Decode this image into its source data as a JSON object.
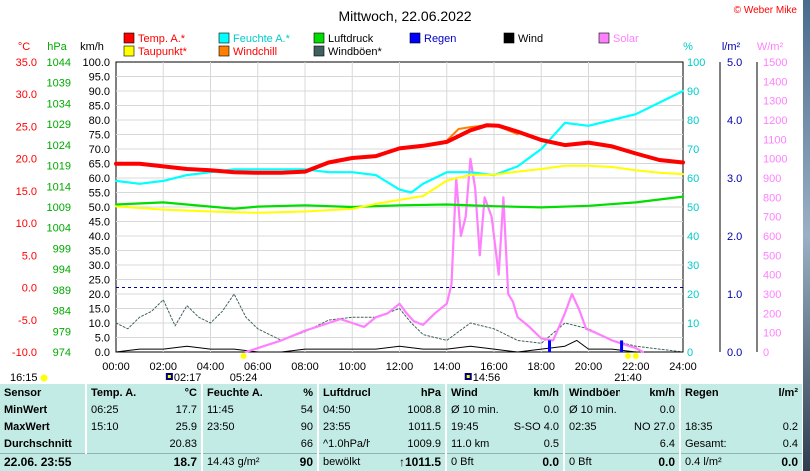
{
  "title": "Mittwoch, 22.06.2022",
  "copyright": "© Weber Mike",
  "legend": [
    {
      "label": "Temp. A.*",
      "color": "#ff0000"
    },
    {
      "label": "Feuchte A.*",
      "color": "#00ffff"
    },
    {
      "label": "Luftdruck",
      "color": "#00dd00"
    },
    {
      "label": "Regen",
      "color": "#0000ff"
    },
    {
      "label": "Wind",
      "color": "#000000"
    },
    {
      "label": "Solar",
      "color": "#ff80ff"
    },
    {
      "label": "Taupunkt*",
      "color": "#ffff00"
    },
    {
      "label": "Windchill",
      "color": "#ff8000"
    },
    {
      "label": "Windböen*",
      "color": "#406060"
    }
  ],
  "chart_data": {
    "type": "line",
    "x_unit": "hour",
    "xlim": [
      0,
      24
    ],
    "x_ticks": [
      "00:00",
      "02:00",
      "04:00",
      "06:00",
      "08:00",
      "10:00",
      "12:00",
      "14:00",
      "16:00",
      "18:00",
      "20:00",
      "22:00",
      "24:00"
    ],
    "axes": {
      "temp": {
        "unit": "°C",
        "ticks": [
          "35.0",
          "30.0",
          "25.0",
          "20.0",
          "15.0",
          "10.0",
          "5.0",
          "0.0",
          "-5.0",
          "-10.0"
        ],
        "color": "#ff0000"
      },
      "pressure": {
        "unit": "hPa",
        "ticks": [
          "1044",
          "1039",
          "1034",
          "1029",
          "1024",
          "1019",
          "1014",
          "1009",
          "1004",
          "999",
          "994",
          "989",
          "984",
          "979",
          "974"
        ],
        "color": "#00aa00"
      },
      "wind": {
        "unit": "km/h",
        "ticks": [
          "100.0",
          "95.0",
          "90.0",
          "85.0",
          "80.0",
          "75.0",
          "70.0",
          "65.0",
          "60.0",
          "55.0",
          "50.0",
          "45.0",
          "40.0",
          "35.0",
          "30.0",
          "25.0",
          "20.0",
          "15.0",
          "10.0",
          "5.0",
          "0.0"
        ],
        "color": "#000000"
      },
      "humidity": {
        "unit": "%",
        "ticks": [
          "100",
          "90",
          "80",
          "70",
          "60",
          "50",
          "40",
          "30",
          "20",
          "10",
          "0"
        ],
        "color": "#00cccc"
      },
      "rain": {
        "unit": "l/m²",
        "ticks": [
          "5.0",
          "4.0",
          "3.0",
          "2.0",
          "1.0",
          "0.0"
        ],
        "color": "#0000aa"
      },
      "solar": {
        "unit": "W/m²",
        "ticks": [
          "1500",
          "1400",
          "1300",
          "1200",
          "1100",
          "1000",
          "900",
          "800",
          "700",
          "600",
          "500",
          "400",
          "300",
          "200",
          "100",
          "0"
        ],
        "color": "#ff80ff"
      }
    },
    "series": [
      {
        "name": "Temp. A.*",
        "axis": "temp",
        "color": "#ff0000",
        "points": [
          [
            0,
            19.2
          ],
          [
            1,
            19.2
          ],
          [
            2,
            18.8
          ],
          [
            3,
            18.4
          ],
          [
            4,
            18.2
          ],
          [
            5,
            17.9
          ],
          [
            6,
            17.8
          ],
          [
            7,
            17.8
          ],
          [
            8,
            18.0
          ],
          [
            9,
            19.4
          ],
          [
            10,
            20.1
          ],
          [
            11,
            20.4
          ],
          [
            12,
            21.6
          ],
          [
            13,
            22.0
          ],
          [
            14,
            22.6
          ],
          [
            15,
            24.4
          ],
          [
            15.7,
            25.2
          ],
          [
            16.2,
            25.1
          ],
          [
            17,
            24.2
          ],
          [
            18,
            22.9
          ],
          [
            19,
            22.1
          ],
          [
            20,
            22.5
          ],
          [
            21,
            21.9
          ],
          [
            22,
            20.8
          ],
          [
            23,
            19.8
          ],
          [
            24,
            19.4
          ]
        ]
      },
      {
        "name": "Windchill",
        "axis": "temp",
        "color": "#ff8000",
        "points": [
          [
            14,
            22.8
          ],
          [
            14.5,
            24.6
          ],
          [
            15,
            24.9
          ],
          [
            15.5,
            25.1
          ],
          [
            16.2,
            25.0
          ],
          [
            17,
            23.8
          ]
        ]
      },
      {
        "name": "Taupunkt*",
        "axis": "temp",
        "color": "#ffff00",
        "points": [
          [
            0,
            12.6
          ],
          [
            2,
            12.1
          ],
          [
            4,
            11.8
          ],
          [
            6,
            11.6
          ],
          [
            8,
            11.8
          ],
          [
            10,
            12.2
          ],
          [
            11,
            13.0
          ],
          [
            12,
            13.6
          ],
          [
            13,
            14.2
          ],
          [
            14,
            16.6
          ],
          [
            15,
            17.5
          ],
          [
            16,
            17.5
          ],
          [
            17,
            18.0
          ],
          [
            18,
            18.4
          ],
          [
            19,
            18.9
          ],
          [
            20,
            18.9
          ],
          [
            21,
            18.7
          ],
          [
            22,
            18.2
          ],
          [
            23,
            17.8
          ],
          [
            24,
            17.6
          ]
        ]
      },
      {
        "name": "Feuchte A.*",
        "axis": "humidity",
        "color": "#00ffff",
        "points": [
          [
            0,
            59
          ],
          [
            1,
            58
          ],
          [
            2,
            59
          ],
          [
            3,
            61
          ],
          [
            4,
            62
          ],
          [
            5,
            63
          ],
          [
            6,
            63
          ],
          [
            7,
            63
          ],
          [
            8,
            63
          ],
          [
            9,
            62
          ],
          [
            10,
            62
          ],
          [
            11,
            61
          ],
          [
            12,
            56
          ],
          [
            12.5,
            55
          ],
          [
            13,
            58
          ],
          [
            14,
            62
          ],
          [
            15,
            62
          ],
          [
            16,
            61
          ],
          [
            17,
            64
          ],
          [
            18,
            70
          ],
          [
            19,
            79
          ],
          [
            20,
            78
          ],
          [
            21,
            80
          ],
          [
            22,
            82
          ],
          [
            23,
            86
          ],
          [
            24,
            90
          ]
        ]
      },
      {
        "name": "Luftdruck",
        "axis": "pressure",
        "color": "#00dd00",
        "points": [
          [
            0,
            1009.6
          ],
          [
            2,
            1010.1
          ],
          [
            4,
            1009.1
          ],
          [
            5,
            1008.6
          ],
          [
            6,
            1009.1
          ],
          [
            8,
            1009.4
          ],
          [
            10,
            1009.0
          ],
          [
            12,
            1009.4
          ],
          [
            14,
            1009.6
          ],
          [
            16,
            1009.2
          ],
          [
            18,
            1008.9
          ],
          [
            20,
            1009.3
          ],
          [
            22,
            1010.1
          ],
          [
            24,
            1011.5
          ]
        ]
      },
      {
        "name": "Windböen*",
        "axis": "wind",
        "color": "#406060",
        "points": [
          [
            0,
            10
          ],
          [
            0.5,
            8
          ],
          [
            1,
            12
          ],
          [
            1.5,
            14
          ],
          [
            2,
            18
          ],
          [
            2.5,
            9
          ],
          [
            3,
            16
          ],
          [
            3.5,
            12
          ],
          [
            4,
            10
          ],
          [
            4.5,
            14
          ],
          [
            5,
            20
          ],
          [
            5.5,
            12
          ],
          [
            6,
            8
          ],
          [
            7,
            4
          ],
          [
            8,
            7
          ],
          [
            9,
            11
          ],
          [
            10,
            12
          ],
          [
            11,
            12
          ],
          [
            12,
            15
          ],
          [
            12.5,
            10
          ],
          [
            13,
            6
          ],
          [
            14,
            4
          ],
          [
            15,
            10
          ],
          [
            16,
            8
          ],
          [
            17,
            4
          ],
          [
            18,
            3
          ],
          [
            19,
            10
          ],
          [
            20,
            8
          ],
          [
            21,
            4
          ],
          [
            22,
            2
          ],
          [
            23,
            1
          ],
          [
            24,
            0
          ]
        ]
      },
      {
        "name": "Wind",
        "axis": "wind",
        "color": "#000000",
        "points": [
          [
            0,
            0
          ],
          [
            1,
            1
          ],
          [
            2,
            1
          ],
          [
            3,
            2
          ],
          [
            4,
            1
          ],
          [
            5,
            1
          ],
          [
            6,
            0
          ],
          [
            7,
            0
          ],
          [
            8,
            1
          ],
          [
            9,
            1
          ],
          [
            10,
            1
          ],
          [
            11,
            1
          ],
          [
            12,
            2
          ],
          [
            13,
            1
          ],
          [
            14,
            1
          ],
          [
            15,
            2
          ],
          [
            16,
            1
          ],
          [
            17,
            0
          ],
          [
            18,
            1
          ],
          [
            19,
            2
          ],
          [
            19.5,
            4
          ],
          [
            20,
            1
          ],
          [
            21,
            1
          ],
          [
            22,
            0
          ],
          [
            23,
            0
          ],
          [
            24,
            0
          ]
        ]
      },
      {
        "name": "Solar",
        "axis": "solar",
        "color": "#ff80ff",
        "points": [
          [
            5.5,
            0
          ],
          [
            6,
            20
          ],
          [
            7,
            60
          ],
          [
            8,
            110
          ],
          [
            9,
            150
          ],
          [
            9.5,
            170
          ],
          [
            10,
            150
          ],
          [
            10.5,
            130
          ],
          [
            11,
            180
          ],
          [
            11.5,
            200
          ],
          [
            12,
            250
          ],
          [
            12.3,
            200
          ],
          [
            12.6,
            160
          ],
          [
            13,
            140
          ],
          [
            13.5,
            200
          ],
          [
            14,
            250
          ],
          [
            14.2,
            350
          ],
          [
            14.4,
            900
          ],
          [
            14.6,
            600
          ],
          [
            14.8,
            700
          ],
          [
            15,
            1000
          ],
          [
            15.2,
            850
          ],
          [
            15.4,
            500
          ],
          [
            15.6,
            800
          ],
          [
            15.9,
            700
          ],
          [
            16.2,
            400
          ],
          [
            16.4,
            800
          ],
          [
            16.6,
            300
          ],
          [
            16.8,
            260
          ],
          [
            17,
            180
          ],
          [
            17.5,
            130
          ],
          [
            18,
            70
          ],
          [
            18.5,
            60
          ],
          [
            19,
            200
          ],
          [
            19.3,
            300
          ],
          [
            19.6,
            220
          ],
          [
            19.9,
            120
          ],
          [
            20.3,
            100
          ],
          [
            21,
            60
          ],
          [
            21.5,
            40
          ],
          [
            22,
            20
          ],
          [
            22.3,
            0
          ]
        ]
      }
    ],
    "rain_bars": [
      [
        18.35,
        0.2
      ],
      [
        21.4,
        0.2
      ]
    ]
  },
  "time_labels": {
    "left": "16:15",
    "items": [
      {
        "t": "02:17",
        "pos": 2.28
      },
      {
        "t": "05:24",
        "pos": 5.4
      },
      {
        "t": "14:56",
        "pos": 14.93
      },
      {
        "t": "21:40",
        "pos": 21.67
      }
    ]
  },
  "stats": {
    "header": [
      "Sensor",
      "Temp. A.",
      "°C",
      "Feuchte A.",
      "%",
      "Luftdruck",
      "hPa",
      "Wind",
      "km/h",
      "Windböen",
      "km/h",
      "Regen",
      "l/m²"
    ],
    "rows": [
      [
        "MinWert",
        "06:25",
        "17.7",
        "11:45",
        "54",
        "04:50",
        "1008.8",
        "Ø 10 min.",
        "0.0",
        "Ø 10 min.",
        "0.0",
        "",
        ""
      ],
      [
        "MaxWert",
        "15:10",
        "25.9",
        "23:50",
        "90",
        "23:55",
        "1011.5",
        "19:45",
        "S-SO 4.0",
        "02:35",
        "NO 27.0",
        "18:35",
        "0.2"
      ],
      [
        "Durchschnitt",
        "",
        "20.83",
        "",
        "66",
        "^1.0hPa/h",
        "1009.9",
        "11.0 km",
        "0.5",
        "",
        "6.4",
        "Gesamt:",
        "0.4"
      ]
    ],
    "last": [
      "22.06. 23:55",
      "18.7",
      "14.43 g/m²",
      "90",
      "bewölkt",
      "↑1011.5",
      "0 Bft",
      "0.0",
      "0 Bft",
      "0.0",
      "0.4 l/m²",
      "0.0"
    ]
  }
}
